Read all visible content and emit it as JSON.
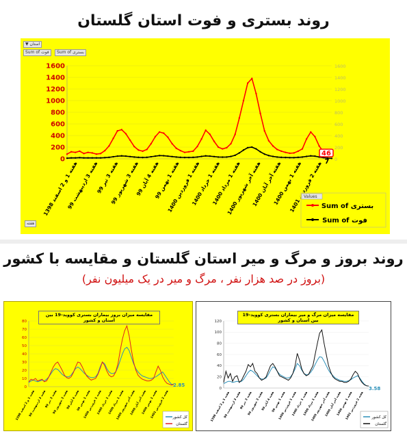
{
  "titles": {
    "main": "روند بستری و فوت استان گلستان",
    "section": "روند بروز و مرگ و میر استان گلستان و مقایسه با کشور",
    "subtitle": "(بروز در صد هزار نفر ، مرگ و میر در یک میلیون نفر)"
  },
  "main_panel": {
    "filter_button": "استان",
    "pivot_field_1": "Sum of فوت",
    "pivot_field_2": "Sum of بستری",
    "bottom_button": "هفته",
    "legend_title": "Values",
    "end_label_red": "46",
    "end_label_black": "7"
  },
  "left_panel": {
    "title": "مقایسه میزان بروز بیماران بستری کووید-19 بین استان و کشور",
    "end_label": "2.85",
    "legend": [
      "کل کشور",
      "گلستان"
    ]
  },
  "right_panel": {
    "title": "مقایسه میزان مرگ و میر بیماران بستری کووید-19 بین استان و کشور",
    "end_label": "3.58",
    "legend": [
      "کل کشور",
      "گلستان"
    ]
  },
  "chart_data": [
    {
      "type": "line",
      "ylim": [
        0,
        1600
      ],
      "y2lim": [
        0,
        1600
      ],
      "yticks": [
        0,
        200,
        400,
        600,
        800,
        1000,
        1200,
        1400,
        1600
      ],
      "xticks": [
        "هفته 1 و 2 اسفند 1398",
        "هفته 3 اردیبهشت 99",
        "هفته 3 تیر 99",
        "هفته 3 شهریور 99",
        "هفته 4 آبان 99",
        "هفته 1 بهمن 99",
        "هفته 1 فروردین 1400",
        "هفته 1 خرداد 1400",
        "هفته 1 مرداد 1400",
        "هفته آخر شهریور 1400",
        "هفته آخر آبان 1400",
        "هفته 1 بهمن 1400",
        "هفته 2 فروردین 1401"
      ],
      "series": [
        {
          "name": "Sum of بستری",
          "color": "#ff0000",
          "values": [
            80,
            120,
            110,
            130,
            90,
            110,
            100,
            80,
            90,
            140,
            220,
            350,
            480,
            500,
            430,
            320,
            210,
            150,
            130,
            160,
            260,
            380,
            460,
            440,
            370,
            260,
            180,
            140,
            110,
            120,
            130,
            210,
            340,
            490,
            420,
            300,
            200,
            170,
            190,
            260,
            420,
            700,
            1000,
            1300,
            1380,
            1120,
            780,
            480,
            310,
            220,
            160,
            130,
            110,
            95,
            100,
            130,
            170,
            340,
            460,
            380,
            220,
            120,
            70,
            46
          ]
        },
        {
          "name": "Sum of فوت",
          "color": "#000000",
          "values": [
            10,
            15,
            15,
            20,
            15,
            15,
            15,
            15,
            15,
            20,
            25,
            35,
            45,
            50,
            45,
            38,
            30,
            25,
            22,
            25,
            35,
            45,
            55,
            52,
            45,
            38,
            30,
            25,
            22,
            22,
            25,
            30,
            40,
            50,
            45,
            38,
            30,
            28,
            30,
            40,
            60,
            100,
            150,
            190,
            200,
            170,
            120,
            80,
            55,
            40,
            30,
            25,
            22,
            20,
            20,
            25,
            30,
            40,
            50,
            45,
            30,
            20,
            12,
            7
          ]
        }
      ]
    },
    {
      "type": "line",
      "ylim": [
        0,
        80
      ],
      "yticks": [
        0,
        10,
        20,
        30,
        40,
        50,
        60,
        70,
        80
      ],
      "series": [
        {
          "name": "کل کشور",
          "color": "#2a8fb8",
          "values": [
            5,
            7,
            8,
            7,
            6,
            7,
            8,
            7,
            9,
            12,
            16,
            20,
            22,
            21,
            18,
            15,
            13,
            12,
            12,
            14,
            18,
            22,
            24,
            22,
            19,
            16,
            14,
            12,
            11,
            11,
            12,
            16,
            24,
            30,
            28,
            22,
            18,
            16,
            16,
            18,
            24,
            32,
            40,
            46,
            48,
            44,
            36,
            28,
            22,
            18,
            15,
            13,
            12,
            11,
            10,
            10,
            11,
            12,
            14,
            16,
            18,
            14,
            10,
            6,
            3,
            2.85
          ]
        },
        {
          "name": "گلستان",
          "color": "#e02020",
          "values": [
            6,
            9,
            8,
            10,
            7,
            8,
            9,
            6,
            7,
            12,
            18,
            24,
            28,
            30,
            25,
            20,
            14,
            11,
            10,
            12,
            17,
            24,
            30,
            29,
            24,
            18,
            13,
            10,
            8,
            9,
            10,
            15,
            22,
            30,
            26,
            19,
            14,
            12,
            13,
            18,
            28,
            44,
            58,
            68,
            74,
            62,
            45,
            30,
            20,
            14,
            11,
            9,
            8,
            7,
            7,
            8,
            10,
            18,
            25,
            20,
            12,
            7,
            4,
            3,
            2,
            2.85
          ]
        }
      ]
    },
    {
      "type": "line",
      "ylim": [
        0,
        120
      ],
      "yticks": [
        0,
        20,
        40,
        60,
        80,
        100,
        120
      ],
      "series": [
        {
          "name": "کل کشور",
          "color": "#2a8fb8",
          "values": [
            8,
            10,
            12,
            12,
            10,
            11,
            12,
            11,
            12,
            16,
            22,
            28,
            32,
            30,
            26,
            22,
            18,
            16,
            16,
            18,
            24,
            32,
            38,
            36,
            30,
            25,
            22,
            20,
            18,
            18,
            20,
            26,
            34,
            44,
            40,
            32,
            26,
            24,
            24,
            28,
            34,
            42,
            50,
            56,
            55,
            48,
            40,
            32,
            26,
            22,
            18,
            16,
            14,
            13,
            12,
            12,
            13,
            15,
            18,
            20,
            22,
            18,
            12,
            7,
            4,
            3.58
          ]
        },
        {
          "name": "گلستان",
          "color": "#111111",
          "values": [
            10,
            30,
            18,
            26,
            12,
            20,
            22,
            10,
            14,
            22,
            30,
            42,
            38,
            44,
            30,
            26,
            18,
            14,
            16,
            20,
            30,
            40,
            44,
            38,
            30,
            22,
            20,
            18,
            16,
            14,
            18,
            26,
            40,
            62,
            50,
            34,
            26,
            22,
            24,
            32,
            40,
            60,
            80,
            98,
            104,
            80,
            60,
            40,
            28,
            20,
            16,
            14,
            12,
            12,
            10,
            10,
            12,
            16,
            24,
            30,
            26,
            16,
            10,
            6,
            4,
            3.58
          ]
        }
      ]
    }
  ]
}
